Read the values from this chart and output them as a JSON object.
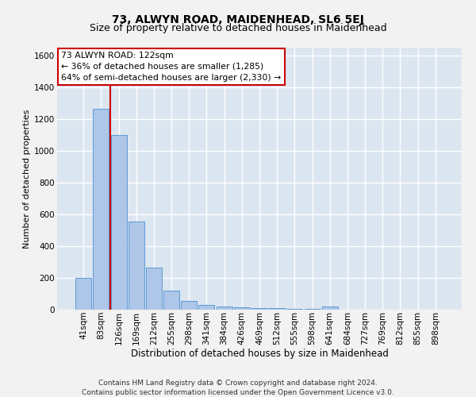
{
  "title": "73, ALWYN ROAD, MAIDENHEAD, SL6 5EJ",
  "subtitle": "Size of property relative to detached houses in Maidenhead",
  "xlabel": "Distribution of detached houses by size in Maidenhead",
  "ylabel": "Number of detached properties",
  "footer_line1": "Contains HM Land Registry data © Crown copyright and database right 2024.",
  "footer_line2": "Contains public sector information licensed under the Open Government Licence v3.0.",
  "categories": [
    "41sqm",
    "83sqm",
    "126sqm",
    "169sqm",
    "212sqm",
    "255sqm",
    "298sqm",
    "341sqm",
    "384sqm",
    "426sqm",
    "469sqm",
    "512sqm",
    "555sqm",
    "598sqm",
    "641sqm",
    "684sqm",
    "727sqm",
    "769sqm",
    "812sqm",
    "855sqm",
    "898sqm"
  ],
  "values": [
    200,
    1265,
    1100,
    555,
    265,
    120,
    55,
    32,
    22,
    15,
    10,
    10,
    7,
    7,
    18,
    0,
    0,
    0,
    0,
    0,
    0
  ],
  "bar_color": "#aec6e8",
  "bar_edge_color": "#5b9bd5",
  "background_color": "#dce6f1",
  "fig_background_color": "#f2f2f2",
  "grid_color": "#ffffff",
  "red_line_color": "#cc0000",
  "red_line_x": 1.52,
  "annotation_text": "73 ALWYN ROAD: 122sqm\n← 36% of detached houses are smaller (1,285)\n64% of semi-detached houses are larger (2,330) →",
  "annotation_box_edgecolor": "#cc0000",
  "ylim": [
    0,
    1650
  ],
  "yticks": [
    0,
    200,
    400,
    600,
    800,
    1000,
    1200,
    1400,
    1600
  ],
  "title_fontsize": 10,
  "subtitle_fontsize": 9,
  "xlabel_fontsize": 8.5,
  "ylabel_fontsize": 8,
  "tick_fontsize": 7.5,
  "annotation_fontsize": 7.8,
  "footer_fontsize": 6.5
}
